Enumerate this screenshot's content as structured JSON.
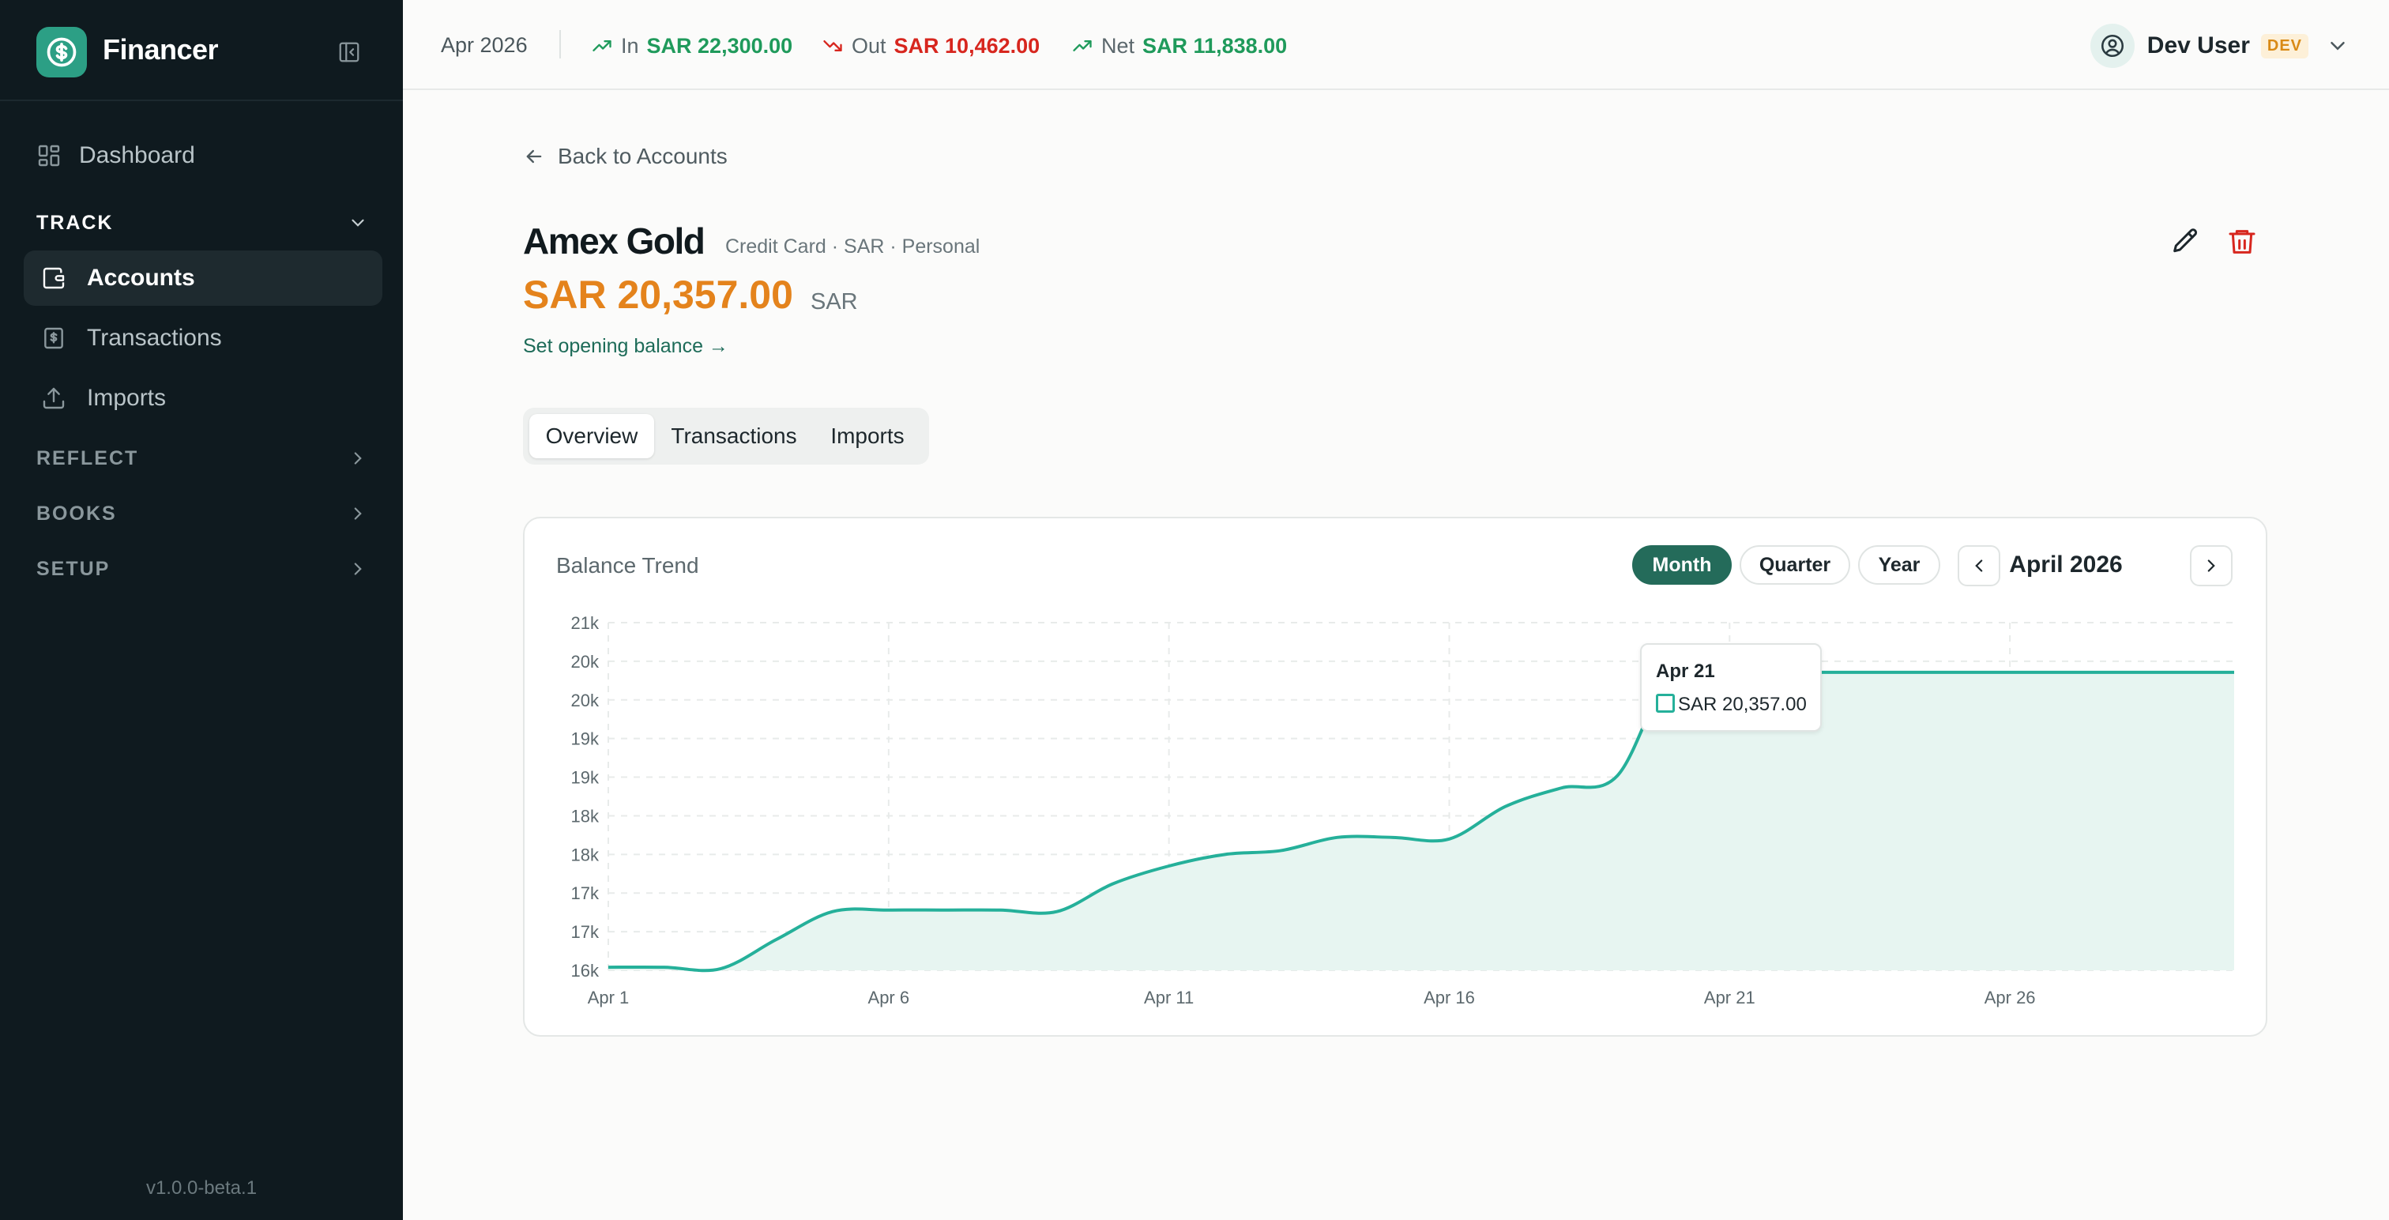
{
  "app": {
    "name": "Financer",
    "version": "v1.0.0-beta.1"
  },
  "sidebar": {
    "dashboard": "Dashboard",
    "sections": [
      {
        "label": "TRACK",
        "open": true,
        "items": [
          "Accounts",
          "Transactions",
          "Imports"
        ]
      },
      {
        "label": "REFLECT",
        "open": false
      },
      {
        "label": "BOOKS",
        "open": false
      },
      {
        "label": "SETUP",
        "open": false
      }
    ],
    "active_item": "Accounts"
  },
  "topbar": {
    "period": "Apr 2026",
    "in_label": "In",
    "in_value": "SAR 22,300.00",
    "out_label": "Out",
    "out_value": "SAR 10,462.00",
    "net_label": "Net",
    "net_value": "SAR 11,838.00",
    "user_name": "Dev User",
    "badge": "DEV"
  },
  "account": {
    "back_label": "Back to Accounts",
    "name": "Amex Gold",
    "meta": "Credit Card · SAR · Personal",
    "balance": "SAR 20,357.00",
    "currency": "SAR",
    "opening_link": "Set opening balance →"
  },
  "tabs": [
    "Overview",
    "Transactions",
    "Imports"
  ],
  "active_tab": "Overview",
  "card": {
    "title": "Balance Trend",
    "ranges": [
      "Month",
      "Quarter",
      "Year"
    ],
    "active_range": "Month",
    "period_label": "April 2026"
  },
  "tooltip": {
    "date": "Apr 21",
    "value": "SAR 20,357.00"
  },
  "colors": {
    "accent": "#246b5a",
    "line": "#25b09a",
    "balance": "#e4831c",
    "positive": "#1f9a5b",
    "negative": "#d7261e"
  },
  "chart_data": {
    "type": "area",
    "y_tick_labels": [
      "21k",
      "20k",
      "20k",
      "19k",
      "19k",
      "18k",
      "18k",
      "17k",
      "17k",
      "16k"
    ],
    "y_tick_values": [
      21000,
      20500,
      20000,
      19500,
      19000,
      18500,
      18000,
      17500,
      17000,
      16500
    ],
    "ylim": [
      16500,
      21000
    ],
    "x_tick_labels": [
      "Apr 1",
      "Apr 6",
      "Apr 11",
      "Apr 16",
      "Apr 21",
      "Apr 26"
    ],
    "x_tick_days": [
      1,
      6,
      11,
      16,
      21,
      26
    ],
    "xlim": [
      1,
      30
    ],
    "grid": true,
    "series": [
      {
        "x": [
          1,
          2,
          3,
          4,
          5,
          6,
          7,
          8,
          9,
          10,
          11,
          12,
          13,
          14,
          15,
          16,
          17,
          18,
          19,
          20,
          21,
          22,
          23,
          24,
          25,
          26,
          27,
          28,
          29,
          30
        ],
        "values": [
          16540,
          16540,
          16520,
          16900,
          17260,
          17280,
          17280,
          17280,
          17260,
          17620,
          17850,
          18000,
          18050,
          18220,
          18220,
          18200,
          18620,
          18860,
          19020,
          20400,
          20357,
          20357,
          20357,
          20357,
          20357,
          20357,
          20357,
          20357,
          20357,
          20357
        ]
      }
    ],
    "highlight_day": 21
  }
}
